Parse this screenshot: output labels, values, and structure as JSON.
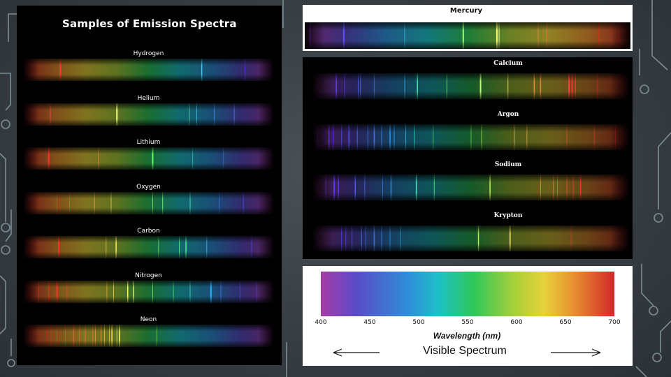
{
  "main_title": "Samples of Emission Spectra",
  "left_elements": [
    {
      "name": "Hydrogen",
      "lines": [
        {
          "nm": 434,
          "c": "#6a3cff",
          "w": 1,
          "o": 0.7
        },
        {
          "nm": 486,
          "c": "#55ccff",
          "w": 1.5,
          "o": 0.9
        },
        {
          "nm": 656,
          "c": "#ff3c3c",
          "w": 2,
          "o": 0.9
        }
      ]
    },
    {
      "name": "Helium",
      "lines": [
        {
          "nm": 447,
          "c": "#6a6aff",
          "w": 1,
          "o": 0.8
        },
        {
          "nm": 471,
          "c": "#40a0ff",
          "w": 1,
          "o": 0.7
        },
        {
          "nm": 492,
          "c": "#40ddff",
          "w": 1,
          "o": 0.7
        },
        {
          "nm": 501,
          "c": "#60ffb0",
          "w": 1,
          "o": 0.7
        },
        {
          "nm": 588,
          "c": "#ffff70",
          "w": 2,
          "o": 1
        },
        {
          "nm": 668,
          "c": "#ff5050",
          "w": 1,
          "o": 0.8
        }
      ]
    },
    {
      "name": "Lithium",
      "lines": [
        {
          "nm": 460,
          "c": "#5080ff",
          "w": 1,
          "o": 0.5
        },
        {
          "nm": 497,
          "c": "#40ffcc",
          "w": 1,
          "o": 0.5
        },
        {
          "nm": 545,
          "c": "#60ff60",
          "w": 2,
          "o": 1
        },
        {
          "nm": 610,
          "c": "#ff9040",
          "w": 1,
          "o": 0.8
        },
        {
          "nm": 670,
          "c": "#ff3030",
          "w": 2,
          "o": 1
        }
      ]
    },
    {
      "name": "Oxygen",
      "lines": [
        {
          "nm": 436,
          "c": "#5060ff",
          "w": 1,
          "o": 0.7
        },
        {
          "nm": 465,
          "c": "#4090ff",
          "w": 1,
          "o": 0.6
        },
        {
          "nm": 500,
          "c": "#50ffc0",
          "w": 1,
          "o": 0.8
        },
        {
          "nm": 533,
          "c": "#80ff80",
          "w": 1,
          "o": 0.9
        },
        {
          "nm": 545,
          "c": "#a0ff70",
          "w": 1,
          "o": 0.7
        },
        {
          "nm": 595,
          "c": "#ffd060",
          "w": 1,
          "o": 0.8
        },
        {
          "nm": 615,
          "c": "#ff9040",
          "w": 1,
          "o": 0.9
        },
        {
          "nm": 645,
          "c": "#ff5040",
          "w": 1,
          "o": 0.8
        },
        {
          "nm": 660,
          "c": "#ff3030",
          "w": 1,
          "o": 0.9
        }
      ]
    },
    {
      "name": "Carbon",
      "lines": [
        {
          "nm": 426,
          "c": "#5050ff",
          "w": 1,
          "o": 0.7
        },
        {
          "nm": 480,
          "c": "#40c0ff",
          "w": 1,
          "o": 0.8
        },
        {
          "nm": 505,
          "c": "#50ff90",
          "w": 1.5,
          "o": 0.9
        },
        {
          "nm": 513,
          "c": "#60ff80",
          "w": 1,
          "o": 0.8
        },
        {
          "nm": 538,
          "c": "#70ff60",
          "w": 1,
          "o": 0.7
        },
        {
          "nm": 589,
          "c": "#ffee60",
          "w": 1.5,
          "o": 1
        },
        {
          "nm": 601,
          "c": "#ffc050",
          "w": 1,
          "o": 0.8
        },
        {
          "nm": 658,
          "c": "#ff3030",
          "w": 2,
          "o": 1
        }
      ]
    },
    {
      "name": "Nitrogen",
      "lines": [
        {
          "nm": 420,
          "c": "#5040ff",
          "w": 1,
          "o": 0.6
        },
        {
          "nm": 440,
          "c": "#5060ff",
          "w": 1,
          "o": 0.6
        },
        {
          "nm": 463,
          "c": "#4090ff",
          "w": 1,
          "o": 0.7
        },
        {
          "nm": 475,
          "c": "#30b0ff",
          "w": 2,
          "o": 1
        },
        {
          "nm": 500,
          "c": "#50ffc0",
          "w": 1,
          "o": 0.7
        },
        {
          "nm": 520,
          "c": "#60ff70",
          "w": 1,
          "o": 0.6
        },
        {
          "nm": 545,
          "c": "#a0ff60",
          "w": 1,
          "o": 0.7
        },
        {
          "nm": 568,
          "c": "#e0ff60",
          "w": 1.5,
          "o": 0.9
        },
        {
          "nm": 575,
          "c": "#ffff60",
          "w": 1.5,
          "o": 1
        },
        {
          "nm": 592,
          "c": "#ffd050",
          "w": 1,
          "o": 0.8
        },
        {
          "nm": 600,
          "c": "#ffb040",
          "w": 1,
          "o": 0.7
        },
        {
          "nm": 648,
          "c": "#ff4030",
          "w": 1,
          "o": 0.8
        },
        {
          "nm": 660,
          "c": "#ff3030",
          "w": 2,
          "o": 1
        },
        {
          "nm": 670,
          "c": "#ff2020",
          "w": 1.5,
          "o": 0.9
        },
        {
          "nm": 682,
          "c": "#e02020",
          "w": 1,
          "o": 0.8
        }
      ]
    },
    {
      "name": "Neon",
      "lines": [
        {
          "nm": 540,
          "c": "#a0ff60",
          "w": 1,
          "o": 0.6
        },
        {
          "nm": 585,
          "c": "#ffff60",
          "w": 1.5,
          "o": 1
        },
        {
          "nm": 588,
          "c": "#ffff60",
          "w": 1,
          "o": 0.8
        },
        {
          "nm": 594,
          "c": "#ffe050",
          "w": 1.5,
          "o": 1
        },
        {
          "nm": 597,
          "c": "#ffd040",
          "w": 1,
          "o": 0.8
        },
        {
          "nm": 603,
          "c": "#ffc040",
          "w": 1,
          "o": 0.8
        },
        {
          "nm": 607,
          "c": "#ffa040",
          "w": 1,
          "o": 0.8
        },
        {
          "nm": 614,
          "c": "#ff9040",
          "w": 1,
          "o": 0.9
        },
        {
          "nm": 617,
          "c": "#ff8040",
          "w": 1,
          "o": 0.8
        },
        {
          "nm": 626,
          "c": "#ff7040",
          "w": 1,
          "o": 0.9
        },
        {
          "nm": 633,
          "c": "#ff6040",
          "w": 1,
          "o": 0.9
        },
        {
          "nm": 640,
          "c": "#ff5030",
          "w": 1.5,
          "o": 1
        },
        {
          "nm": 650,
          "c": "#ff4030",
          "w": 1,
          "o": 0.9
        },
        {
          "nm": 660,
          "c": "#ff3030",
          "w": 1,
          "o": 0.8
        },
        {
          "nm": 667,
          "c": "#ff2020",
          "w": 1,
          "o": 0.8
        },
        {
          "nm": 672,
          "c": "#e02020",
          "w": 1,
          "o": 0.7
        },
        {
          "nm": 692,
          "c": "#c01818",
          "w": 1,
          "o": 0.7
        }
      ]
    }
  ],
  "mercury": {
    "name": "Mercury",
    "lines": [
      {
        "nm": 405,
        "c": "#9a40ff",
        "w": 2,
        "o": 1
      },
      {
        "nm": 436,
        "c": "#5a50ff",
        "w": 2,
        "o": 1
      },
      {
        "nm": 492,
        "c": "#40ddff",
        "w": 1,
        "o": 0.6
      },
      {
        "nm": 546,
        "c": "#a0ff60",
        "w": 2,
        "o": 1
      },
      {
        "nm": 577,
        "c": "#ffff60",
        "w": 2,
        "o": 1
      },
      {
        "nm": 579,
        "c": "#ffff80",
        "w": 1,
        "o": 1
      },
      {
        "nm": 615,
        "c": "#ff9040",
        "w": 1,
        "o": 0.7
      },
      {
        "nm": 623,
        "c": "#ff8040",
        "w": 1,
        "o": 0.8
      },
      {
        "nm": 671,
        "c": "#ff2020",
        "w": 1,
        "o": 0.7
      },
      {
        "nm": 690,
        "c": "#e02020",
        "w": 1,
        "o": 0.7
      }
    ]
  },
  "right_elements": [
    {
      "name": "Calcium",
      "lines": [
        {
          "nm": 422,
          "c": "#6040ff",
          "w": 1.5,
          "o": 1
        },
        {
          "nm": 430,
          "c": "#5050ff",
          "w": 1,
          "o": 0.8
        },
        {
          "nm": 443,
          "c": "#5070ff",
          "w": 1,
          "o": 0.8
        },
        {
          "nm": 445,
          "c": "#5070ff",
          "w": 1,
          "o": 0.8
        },
        {
          "nm": 458,
          "c": "#4080ff",
          "w": 1,
          "o": 0.7
        },
        {
          "nm": 487,
          "c": "#40c0ff",
          "w": 1,
          "o": 0.8
        },
        {
          "nm": 499,
          "c": "#50ffc0",
          "w": 1.5,
          "o": 0.9
        },
        {
          "nm": 527,
          "c": "#70ff70",
          "w": 1,
          "o": 0.8
        },
        {
          "nm": 559,
          "c": "#c0ff60",
          "w": 2,
          "o": 1
        },
        {
          "nm": 585,
          "c": "#ffee60",
          "w": 1,
          "o": 0.8
        },
        {
          "nm": 610,
          "c": "#ff9040",
          "w": 1.5,
          "o": 0.9
        },
        {
          "nm": 616,
          "c": "#ff8040",
          "w": 1.5,
          "o": 0.9
        },
        {
          "nm": 643,
          "c": "#ff4040",
          "w": 2,
          "o": 1
        },
        {
          "nm": 646,
          "c": "#ff3030",
          "w": 2,
          "o": 1
        },
        {
          "nm": 649,
          "c": "#ff3030",
          "w": 1.5,
          "o": 0.9
        },
        {
          "nm": 670,
          "c": "#ff2020",
          "w": 1,
          "o": 0.7
        }
      ]
    },
    {
      "name": "Argon",
      "lines": [
        {
          "nm": 404,
          "c": "#8040ff",
          "w": 1,
          "o": 0.8
        },
        {
          "nm": 415,
          "c": "#7040ff",
          "w": 1.5,
          "o": 0.9
        },
        {
          "nm": 419,
          "c": "#6040ff",
          "w": 1,
          "o": 0.8
        },
        {
          "nm": 427,
          "c": "#5050ff",
          "w": 1,
          "o": 0.8
        },
        {
          "nm": 434,
          "c": "#5060ff",
          "w": 1.5,
          "o": 0.9
        },
        {
          "nm": 442,
          "c": "#5070ff",
          "w": 1,
          "o": 0.8
        },
        {
          "nm": 452,
          "c": "#4080ff",
          "w": 1,
          "o": 0.8
        },
        {
          "nm": 458,
          "c": "#4080ff",
          "w": 1.5,
          "o": 0.9
        },
        {
          "nm": 465,
          "c": "#4090ff",
          "w": 1,
          "o": 0.8
        },
        {
          "nm": 473,
          "c": "#30a0ff",
          "w": 1.5,
          "o": 0.9
        },
        {
          "nm": 477,
          "c": "#30b0ff",
          "w": 1,
          "o": 0.8
        },
        {
          "nm": 488,
          "c": "#40c0ff",
          "w": 1,
          "o": 0.8
        },
        {
          "nm": 496,
          "c": "#40ffcc",
          "w": 1,
          "o": 0.7
        },
        {
          "nm": 514,
          "c": "#60ff80",
          "w": 1,
          "o": 0.6
        },
        {
          "nm": 550,
          "c": "#a0ff60",
          "w": 1,
          "o": 0.6
        },
        {
          "nm": 560,
          "c": "#c0ff60",
          "w": 1,
          "o": 0.7
        },
        {
          "nm": 591,
          "c": "#ffd060",
          "w": 1,
          "o": 0.7
        },
        {
          "nm": 603,
          "c": "#ffb040",
          "w": 1,
          "o": 0.7
        },
        {
          "nm": 641,
          "c": "#ff5030",
          "w": 1,
          "o": 0.6
        },
        {
          "nm": 667,
          "c": "#ff3030",
          "w": 1,
          "o": 0.6
        },
        {
          "nm": 687,
          "c": "#e02020",
          "w": 1,
          "o": 0.6
        }
      ]
    },
    {
      "name": "Sodium",
      "lines": [
        {
          "nm": 412,
          "c": "#7040ff",
          "w": 1,
          "o": 0.7
        },
        {
          "nm": 420,
          "c": "#6040ff",
          "w": 2,
          "o": 0.9
        },
        {
          "nm": 424,
          "c": "#6040ff",
          "w": 1.5,
          "o": 0.9
        },
        {
          "nm": 440,
          "c": "#5060ff",
          "w": 1.5,
          "o": 0.9
        },
        {
          "nm": 449,
          "c": "#5070ff",
          "w": 1,
          "o": 0.8
        },
        {
          "nm": 466,
          "c": "#4090ff",
          "w": 1,
          "o": 0.7
        },
        {
          "nm": 474,
          "c": "#30a0ff",
          "w": 1.5,
          "o": 0.8
        },
        {
          "nm": 498,
          "c": "#50ffcc",
          "w": 1.5,
          "o": 0.9
        },
        {
          "nm": 515,
          "c": "#60ff80",
          "w": 1,
          "o": 0.8
        },
        {
          "nm": 568,
          "c": "#e0ff60",
          "w": 1.5,
          "o": 0.9
        },
        {
          "nm": 616,
          "c": "#ff9040",
          "w": 1,
          "o": 0.8
        },
        {
          "nm": 628,
          "c": "#ff7040",
          "w": 1,
          "o": 0.8
        },
        {
          "nm": 632,
          "c": "#ff6040",
          "w": 1,
          "o": 0.8
        },
        {
          "nm": 641,
          "c": "#ff5030",
          "w": 1,
          "o": 0.8
        },
        {
          "nm": 647,
          "c": "#ff4030",
          "w": 1,
          "o": 0.8
        },
        {
          "nm": 654,
          "c": "#ff3030",
          "w": 1.5,
          "o": 0.9
        }
      ]
    },
    {
      "name": "Krypton",
      "lines": [
        {
          "nm": 427,
          "c": "#5050ff",
          "w": 1,
          "o": 0.8
        },
        {
          "nm": 431,
          "c": "#5050ff",
          "w": 1,
          "o": 0.7
        },
        {
          "nm": 437,
          "c": "#5060ff",
          "w": 1,
          "o": 0.7
        },
        {
          "nm": 446,
          "c": "#5070ff",
          "w": 1,
          "o": 0.8
        },
        {
          "nm": 450,
          "c": "#4080ff",
          "w": 1,
          "o": 0.7
        },
        {
          "nm": 458,
          "c": "#4080ff",
          "w": 1.5,
          "o": 0.8
        },
        {
          "nm": 465,
          "c": "#4090ff",
          "w": 1,
          "o": 0.7
        },
        {
          "nm": 473,
          "c": "#30a0ff",
          "w": 1,
          "o": 0.7
        },
        {
          "nm": 483,
          "c": "#40c0ff",
          "w": 1,
          "o": 0.6
        },
        {
          "nm": 557,
          "c": "#c0ff60",
          "w": 1.5,
          "o": 0.9
        },
        {
          "nm": 587,
          "c": "#ffee60",
          "w": 1.5,
          "o": 1
        },
        {
          "nm": 645,
          "c": "#ff4030",
          "w": 1,
          "o": 0.5
        }
      ]
    }
  ],
  "visible": {
    "ticks": [
      "400",
      "450",
      "500",
      "550",
      "600",
      "650",
      "700"
    ],
    "axis_title": "Wavelength (nm)",
    "label": "Visible Spectrum",
    "min_nm": 400,
    "max_nm": 700
  },
  "colors": {
    "violet": "#a63ca6",
    "indigo": "#5a4cc8",
    "blue": "#2e8fd8",
    "cyan": "#1ec0c8",
    "green": "#2ec85a",
    "yellow_green": "#a8d03a",
    "yellow": "#e8d23a",
    "orange": "#e89030",
    "red": "#d2282a",
    "line_accent": "#8fa3ad"
  }
}
